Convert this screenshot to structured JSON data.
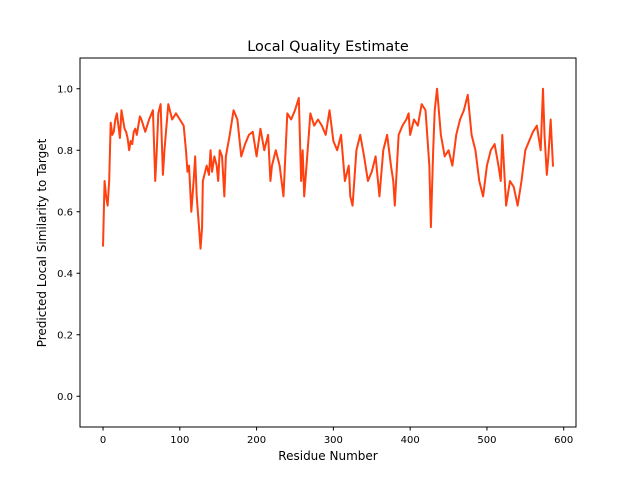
{
  "chart_data": {
    "type": "line",
    "title": "Local Quality Estimate",
    "xlabel": "Residue Number",
    "ylabel": "Predicted Local Similarity to Target",
    "xlim": [
      -30,
      616
    ],
    "ylim": [
      -0.1,
      1.1
    ],
    "xticks": [
      0,
      100,
      200,
      300,
      400,
      500,
      600
    ],
    "yticks": [
      0.0,
      0.2,
      0.4,
      0.6,
      0.8,
      1.0
    ],
    "xtick_labels": [
      "0",
      "100",
      "200",
      "300",
      "400",
      "500",
      "600"
    ],
    "ytick_labels": [
      "0.0",
      "0.2",
      "0.4",
      "0.6",
      "0.8",
      "1.0"
    ],
    "grid": false,
    "series": [
      {
        "color": "#ff4010",
        "x": [
          0,
          2,
          4,
          6,
          8,
          10,
          12,
          14,
          16,
          18,
          20,
          22,
          24,
          26,
          28,
          30,
          32,
          34,
          36,
          38,
          40,
          42,
          44,
          46,
          48,
          50,
          55,
          60,
          65,
          68,
          70,
          72,
          75,
          78,
          80,
          85,
          90,
          95,
          100,
          105,
          108,
          110,
          112,
          115,
          118,
          120,
          122,
          125,
          127,
          129,
          130,
          132,
          135,
          138,
          140,
          142,
          145,
          148,
          150,
          152,
          155,
          158,
          160,
          165,
          170,
          175,
          180,
          185,
          190,
          195,
          200,
          205,
          210,
          215,
          218,
          220,
          225,
          230,
          235,
          240,
          245,
          250,
          255,
          258,
          260,
          262,
          265,
          268,
          270,
          275,
          280,
          285,
          290,
          295,
          300,
          305,
          310,
          315,
          320,
          322,
          325,
          330,
          335,
          340,
          345,
          350,
          355,
          360,
          365,
          370,
          375,
          378,
          380,
          385,
          390,
          395,
          398,
          400,
          405,
          410,
          415,
          420,
          425,
          427,
          430,
          432,
          435,
          440,
          445,
          450,
          455,
          460,
          465,
          470,
          475,
          480,
          485,
          490,
          495,
          500,
          505,
          510,
          515,
          518,
          520,
          525,
          530,
          535,
          540,
          545,
          550,
          555,
          560,
          565,
          570,
          573,
          575,
          578,
          580,
          583,
          586
        ],
        "values": [
          0.49,
          0.7,
          0.65,
          0.62,
          0.7,
          0.89,
          0.85,
          0.86,
          0.9,
          0.92,
          0.88,
          0.84,
          0.93,
          0.9,
          0.87,
          0.86,
          0.84,
          0.8,
          0.83,
          0.82,
          0.86,
          0.87,
          0.85,
          0.88,
          0.91,
          0.9,
          0.86,
          0.9,
          0.93,
          0.7,
          0.8,
          0.92,
          0.95,
          0.72,
          0.8,
          0.95,
          0.9,
          0.92,
          0.9,
          0.88,
          0.8,
          0.73,
          0.75,
          0.6,
          0.7,
          0.78,
          0.65,
          0.55,
          0.48,
          0.55,
          0.7,
          0.72,
          0.75,
          0.72,
          0.8,
          0.73,
          0.78,
          0.75,
          0.7,
          0.8,
          0.78,
          0.65,
          0.78,
          0.85,
          0.93,
          0.9,
          0.78,
          0.82,
          0.85,
          0.86,
          0.78,
          0.87,
          0.8,
          0.85,
          0.7,
          0.75,
          0.8,
          0.75,
          0.65,
          0.92,
          0.9,
          0.93,
          0.97,
          0.7,
          0.8,
          0.65,
          0.75,
          0.85,
          0.92,
          0.88,
          0.9,
          0.88,
          0.85,
          0.93,
          0.83,
          0.8,
          0.85,
          0.7,
          0.75,
          0.65,
          0.62,
          0.8,
          0.85,
          0.78,
          0.7,
          0.73,
          0.78,
          0.65,
          0.8,
          0.85,
          0.75,
          0.7,
          0.62,
          0.85,
          0.88,
          0.9,
          0.92,
          0.85,
          0.9,
          0.88,
          0.95,
          0.93,
          0.75,
          0.55,
          0.8,
          0.93,
          1.0,
          0.85,
          0.78,
          0.8,
          0.75,
          0.85,
          0.9,
          0.93,
          0.98,
          0.85,
          0.8,
          0.7,
          0.65,
          0.75,
          0.8,
          0.82,
          0.75,
          0.7,
          0.85,
          0.62,
          0.7,
          0.68,
          0.62,
          0.7,
          0.8,
          0.83,
          0.86,
          0.88,
          0.8,
          1.0,
          0.85,
          0.72,
          0.78,
          0.9,
          0.75
        ]
      }
    ]
  }
}
